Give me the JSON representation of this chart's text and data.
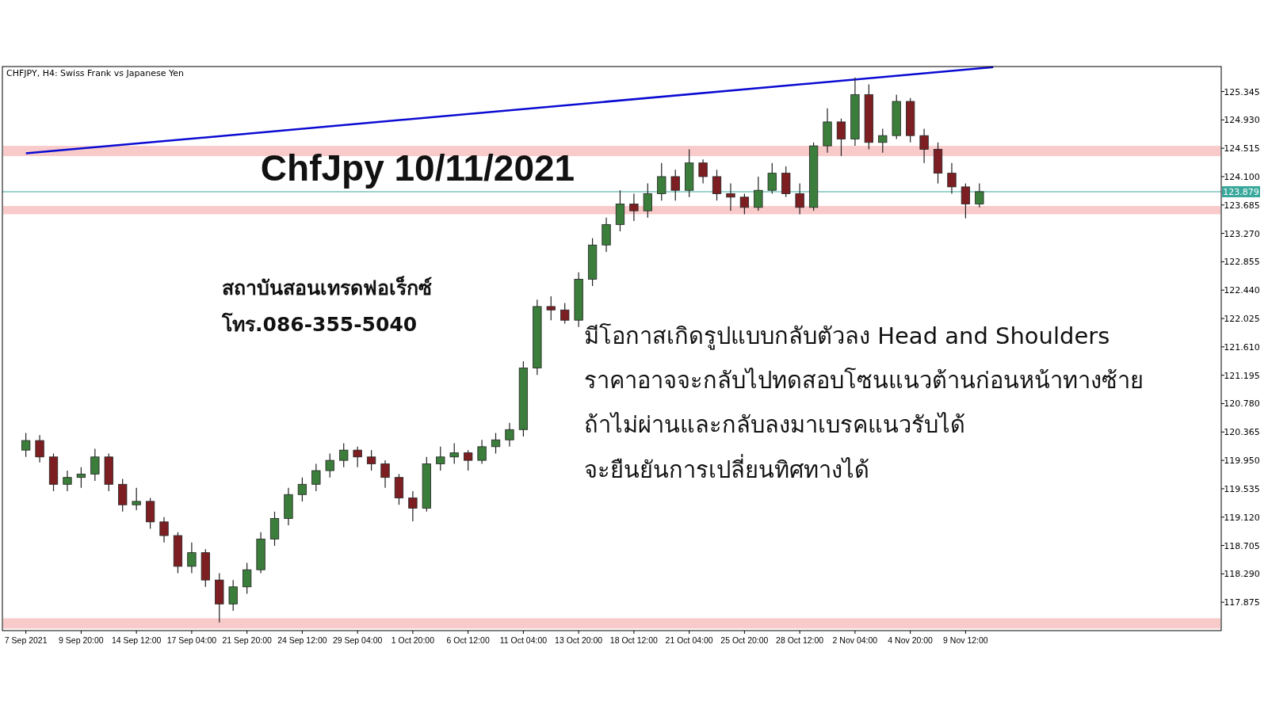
{
  "chart_data": {
    "type": "candlestick",
    "title": "ChfJpy 10/11/2021",
    "subtitle": "CHFJPY, H4:  Swiss Frank vs Japanese Yen",
    "annotations": [
      "สถาบันสอนเทรดฟอเร็กซ์",
      "โทร.086-355-5040",
      "มีโอกาสเกิดรูปแบบกลับตัวลง Head and Shoulders",
      "ราคาอาจจะกลับไปทดสอบโซนแนวต้านก่อนหน้าทางซ้าย",
      "ถ้าไม่ผ่านและกลับลงมาเบรคแนวรับได้",
      "จะยืนยันการเปลี่ยนทิศทางได้"
    ],
    "categories": [
      "7 Sep 2021",
      null,
      null,
      null,
      "9 Sep 20:00",
      null,
      null,
      null,
      "14 Sep 12:00",
      null,
      null,
      null,
      "17 Sep 04:00",
      null,
      null,
      null,
      "21 Sep 20:00",
      null,
      null,
      null,
      "24 Sep 12:00",
      null,
      null,
      null,
      "29 Sep 04:00",
      null,
      null,
      null,
      "1 Oct 20:00",
      null,
      null,
      null,
      "6 Oct 12:00",
      null,
      null,
      null,
      "11 Oct 04:00",
      null,
      null,
      null,
      "13 Oct 20:00",
      null,
      null,
      null,
      "18 Oct 12:00",
      null,
      null,
      null,
      "21 Oct 04:00",
      null,
      null,
      null,
      "25 Oct 20:00",
      null,
      null,
      null,
      "28 Oct 12:00",
      null,
      null,
      null,
      "2 Nov 04:00",
      null,
      null,
      null,
      "4 Nov 20:00",
      null,
      null,
      null,
      "9 Nov 12:00",
      null,
      null,
      null,
      null,
      null,
      null,
      null,
      null,
      null,
      null,
      null,
      null,
      null,
      null,
      null,
      null,
      null,
      null
    ],
    "ohlc": [
      [
        120.1,
        120.35,
        120.0,
        120.24
      ],
      [
        120.24,
        120.32,
        119.92,
        120.0
      ],
      [
        120.0,
        120.05,
        119.5,
        119.6
      ],
      [
        119.6,
        119.8,
        119.5,
        119.7
      ],
      [
        119.7,
        119.85,
        119.55,
        119.75
      ],
      [
        119.75,
        120.12,
        119.65,
        120.0
      ],
      [
        120.0,
        120.05,
        119.5,
        119.6
      ],
      [
        119.6,
        119.68,
        119.2,
        119.3
      ],
      [
        119.3,
        119.55,
        119.22,
        119.35
      ],
      [
        119.35,
        119.4,
        118.95,
        119.05
      ],
      [
        119.05,
        119.12,
        118.75,
        118.85
      ],
      [
        118.85,
        118.9,
        118.3,
        118.4
      ],
      [
        118.4,
        118.75,
        118.3,
        118.6
      ],
      [
        118.6,
        118.65,
        118.1,
        118.2
      ],
      [
        118.2,
        118.3,
        117.58,
        117.85
      ],
      [
        117.85,
        118.2,
        117.75,
        118.1
      ],
      [
        118.1,
        118.45,
        118.0,
        118.35
      ],
      [
        118.35,
        118.9,
        118.3,
        118.8
      ],
      [
        118.8,
        119.2,
        118.7,
        119.1
      ],
      [
        119.1,
        119.55,
        119.0,
        119.45
      ],
      [
        119.45,
        119.7,
        119.35,
        119.6
      ],
      [
        119.6,
        119.9,
        119.5,
        119.8
      ],
      [
        119.8,
        120.05,
        119.7,
        119.95
      ],
      [
        119.95,
        120.2,
        119.85,
        120.1
      ],
      [
        120.1,
        120.15,
        119.85,
        120.0
      ],
      [
        120.0,
        120.1,
        119.8,
        119.9
      ],
      [
        119.9,
        119.95,
        119.55,
        119.7
      ],
      [
        119.7,
        119.75,
        119.3,
        119.4
      ],
      [
        119.4,
        119.5,
        119.06,
        119.25
      ],
      [
        119.25,
        120.0,
        119.2,
        119.9
      ],
      [
        119.9,
        120.15,
        119.8,
        120.0
      ],
      [
        120.0,
        120.2,
        119.9,
        120.06
      ],
      [
        120.06,
        120.1,
        119.8,
        119.95
      ],
      [
        119.95,
        120.25,
        119.9,
        120.15
      ],
      [
        120.15,
        120.35,
        120.05,
        120.25
      ],
      [
        120.25,
        120.5,
        120.15,
        120.4
      ],
      [
        120.4,
        121.4,
        120.3,
        121.3
      ],
      [
        121.3,
        122.3,
        121.2,
        122.2
      ],
      [
        122.2,
        122.35,
        122.0,
        122.15
      ],
      [
        122.15,
        122.25,
        121.95,
        122.0
      ],
      [
        122.0,
        122.7,
        121.9,
        122.6
      ],
      [
        122.6,
        123.2,
        122.5,
        123.1
      ],
      [
        123.1,
        123.5,
        123.0,
        123.4
      ],
      [
        123.4,
        123.9,
        123.3,
        123.7
      ],
      [
        123.7,
        123.85,
        123.45,
        123.6
      ],
      [
        123.6,
        124.0,
        123.5,
        123.85
      ],
      [
        123.85,
        124.3,
        123.75,
        124.1
      ],
      [
        124.1,
        124.2,
        123.75,
        123.9
      ],
      [
        123.9,
        124.5,
        123.8,
        124.3
      ],
      [
        124.3,
        124.35,
        124.0,
        124.1
      ],
      [
        124.1,
        124.2,
        123.75,
        123.85
      ],
      [
        123.85,
        124.0,
        123.6,
        123.8
      ],
      [
        123.8,
        123.85,
        123.55,
        123.65
      ],
      [
        123.65,
        124.1,
        123.6,
        123.9
      ],
      [
        123.9,
        124.3,
        123.85,
        124.15
      ],
      [
        124.15,
        124.25,
        123.8,
        123.85
      ],
      [
        123.85,
        124.0,
        123.55,
        123.65
      ],
      [
        123.65,
        124.6,
        123.6,
        124.55
      ],
      [
        124.55,
        125.1,
        124.45,
        124.9
      ],
      [
        124.9,
        124.95,
        124.4,
        124.65
      ],
      [
        124.65,
        125.55,
        124.55,
        125.3
      ],
      [
        125.3,
        125.45,
        124.5,
        124.6
      ],
      [
        124.6,
        124.8,
        124.45,
        124.7
      ],
      [
        124.7,
        125.3,
        124.65,
        125.2
      ],
      [
        125.2,
        125.25,
        124.6,
        124.7
      ],
      [
        124.7,
        124.8,
        124.3,
        124.5
      ],
      [
        124.5,
        124.6,
        124.0,
        124.15
      ],
      [
        124.15,
        124.3,
        123.85,
        123.95
      ],
      [
        123.95,
        124.0,
        123.49,
        123.7
      ],
      [
        123.7,
        124.0,
        123.65,
        123.88
      ],
      null,
      null,
      null,
      null,
      null,
      null,
      null,
      null,
      null,
      null,
      null,
      null,
      null,
      null,
      null,
      null,
      null
    ],
    "series": [
      {
        "type": "line",
        "color": "#0a0ad2",
        "values": [
          124.44,
          null,
          null,
          null,
          null,
          null,
          null,
          null,
          null,
          null,
          null,
          null,
          null,
          null,
          null,
          null,
          null,
          null,
          null,
          null,
          null,
          null,
          null,
          null,
          null,
          null,
          null,
          null,
          null,
          null,
          null,
          null,
          null,
          null,
          null,
          null,
          null,
          null,
          null,
          null,
          null,
          null,
          null,
          null,
          null,
          null,
          null,
          null,
          null,
          null,
          null,
          null,
          null,
          null,
          null,
          null,
          null,
          null,
          null,
          null,
          null,
          null,
          null,
          null,
          null,
          null,
          null,
          null,
          null,
          null,
          125.7,
          null,
          null,
          null,
          null,
          null,
          null,
          null,
          null,
          null,
          null,
          null,
          null,
          null,
          null,
          null,
          null
        ]
      }
    ],
    "ylim": [
      117.46,
      125.71
    ],
    "yticks": [
      125.345,
      {
        "value": 124.93,
        "label": "124.930"
      },
      124.515,
      {
        "value": 124.1,
        "label": "124.100"
      },
      123.685,
      {
        "value": 123.27,
        "label": "123.270"
      },
      122.855,
      {
        "value": 122.44,
        "label": "122.440"
      },
      122.025,
      {
        "value": 121.61,
        "label": "121.610"
      },
      121.195,
      {
        "value": 120.78,
        "label": "120.780"
      },
      120.365,
      {
        "value": 119.95,
        "label": "119.950"
      },
      119.535,
      {
        "value": 119.12,
        "label": "119.120"
      },
      118.705,
      {
        "value": 118.29,
        "label": "118.290"
      },
      117.875
    ],
    "ref_lines": [
      {
        "axis": "y",
        "value": 123.879,
        "label": "123.879",
        "color": "#3aa89c"
      }
    ],
    "bands": [
      {
        "axis": "y",
        "from": 124.4,
        "to": 124.55,
        "color": "#f9caca"
      },
      {
        "axis": "y",
        "from": 123.55,
        "to": 123.67,
        "color": "#f9caca"
      },
      {
        "axis": "y",
        "from": 117.49,
        "to": 117.64,
        "color": "#f9caca"
      }
    ]
  }
}
